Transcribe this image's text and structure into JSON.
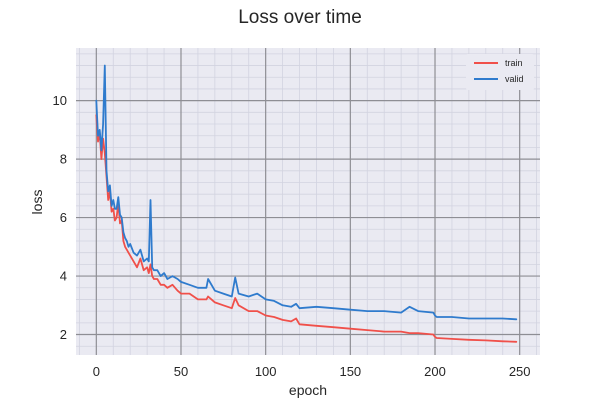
{
  "chart_data": {
    "type": "line",
    "title": "Loss over time",
    "xlabel": "epoch",
    "ylabel": "loss",
    "xlim": [
      -12,
      262
    ],
    "ylim": [
      1.3,
      11.8
    ],
    "xticks": [
      0,
      50,
      100,
      150,
      200,
      250
    ],
    "yticks": [
      2,
      4,
      6,
      8,
      10
    ],
    "x_minor_step": 10,
    "y_minor_step": 0.4,
    "grid": true,
    "legend_position": "top-right",
    "background": "#eaeaf2",
    "series": [
      {
        "name": "train",
        "color": "#f0504a",
        "x": [
          0,
          1,
          2,
          3,
          4,
          5,
          6,
          7,
          8,
          9,
          10,
          11,
          12,
          13,
          14,
          15,
          16,
          17,
          18,
          19,
          20,
          22,
          24,
          26,
          28,
          30,
          31,
          32,
          33,
          34,
          36,
          38,
          40,
          42,
          45,
          48,
          50,
          55,
          60,
          65,
          66,
          70,
          75,
          80,
          82,
          84,
          90,
          95,
          100,
          105,
          110,
          115,
          118,
          120,
          130,
          140,
          150,
          160,
          170,
          180,
          185,
          190,
          199,
          200,
          201,
          210,
          220,
          230,
          240,
          248
        ],
        "values": [
          9.5,
          8.6,
          8.9,
          8.0,
          8.7,
          8.2,
          7.4,
          6.6,
          6.9,
          6.2,
          6.3,
          5.9,
          6.0,
          6.5,
          5.8,
          5.9,
          5.2,
          5.0,
          4.9,
          4.8,
          4.7,
          4.5,
          4.3,
          4.6,
          4.2,
          4.3,
          4.1,
          4.4,
          4.0,
          3.9,
          3.9,
          3.7,
          3.7,
          3.6,
          3.7,
          3.5,
          3.4,
          3.4,
          3.2,
          3.2,
          3.3,
          3.1,
          3.0,
          2.9,
          3.25,
          3.0,
          2.8,
          2.8,
          2.65,
          2.6,
          2.5,
          2.45,
          2.55,
          2.35,
          2.3,
          2.25,
          2.2,
          2.15,
          2.1,
          2.1,
          2.05,
          2.05,
          2.0,
          1.92,
          1.88,
          1.85,
          1.82,
          1.8,
          1.77,
          1.75
        ]
      },
      {
        "name": "valid",
        "color": "#2f7bcd",
        "x": [
          0,
          1,
          2,
          3,
          4,
          5,
          6,
          7,
          8,
          9,
          10,
          11,
          12,
          13,
          14,
          15,
          16,
          17,
          18,
          19,
          20,
          22,
          24,
          26,
          28,
          30,
          31,
          32,
          33,
          34,
          36,
          38,
          40,
          42,
          45,
          48,
          50,
          55,
          60,
          65,
          66,
          70,
          75,
          80,
          82,
          84,
          90,
          95,
          100,
          105,
          110,
          115,
          118,
          120,
          130,
          140,
          150,
          160,
          170,
          180,
          185,
          190,
          199,
          200,
          201,
          210,
          220,
          230,
          240,
          248
        ],
        "values": [
          10.0,
          8.8,
          9.0,
          8.3,
          9.2,
          11.2,
          7.6,
          6.9,
          7.1,
          6.4,
          6.6,
          6.3,
          6.3,
          6.7,
          6.1,
          6.0,
          5.5,
          5.3,
          5.2,
          5.0,
          5.1,
          4.8,
          4.7,
          4.9,
          4.5,
          4.6,
          4.5,
          6.6,
          4.3,
          4.2,
          4.2,
          4.0,
          4.1,
          3.9,
          4.0,
          3.9,
          3.8,
          3.7,
          3.6,
          3.6,
          3.9,
          3.5,
          3.4,
          3.3,
          3.95,
          3.4,
          3.3,
          3.4,
          3.2,
          3.15,
          3.0,
          2.95,
          3.05,
          2.9,
          2.95,
          2.9,
          2.85,
          2.8,
          2.8,
          2.75,
          2.95,
          2.8,
          2.75,
          2.65,
          2.6,
          2.6,
          2.55,
          2.55,
          2.55,
          2.52
        ]
      }
    ]
  }
}
